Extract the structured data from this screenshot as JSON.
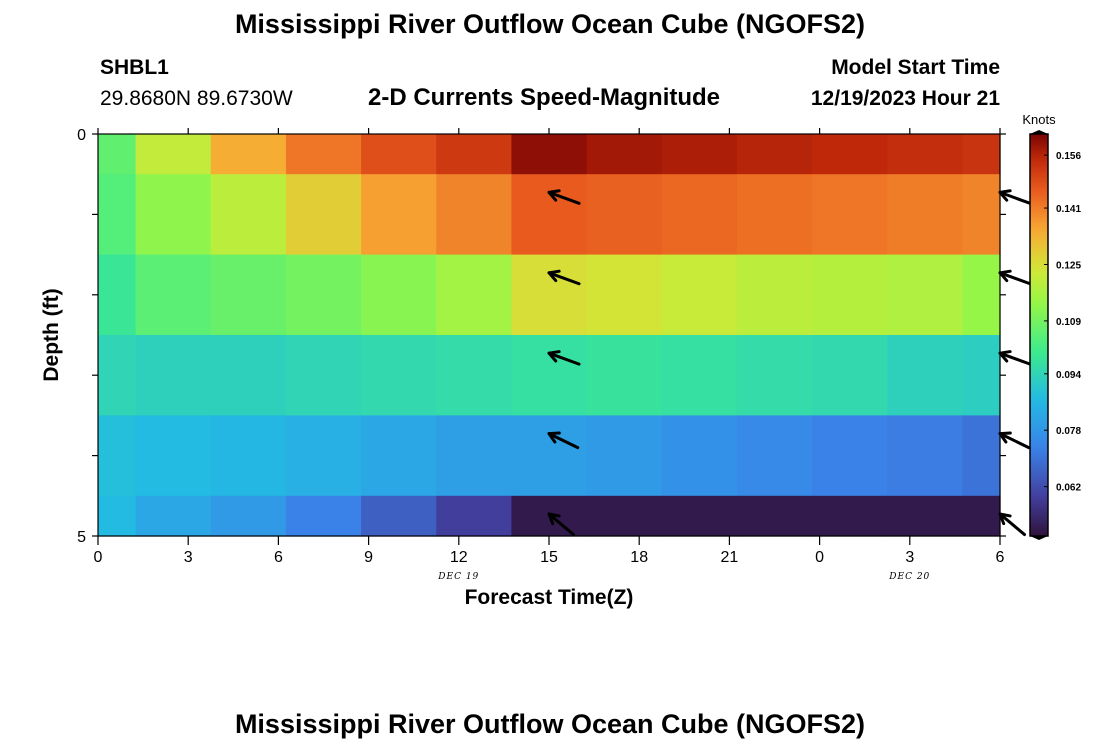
{
  "page": {
    "title": "Mississippi River Outflow Ocean Cube (NGOFS2)",
    "title_repeat": "Mississippi River Outflow Ocean Cube (NGOFS2)",
    "station_id": "SHBL1",
    "station_coords": "29.8680N  89.6730W",
    "subtitle": "2-D Currents Speed-Magnitude",
    "model_start_label": "Model Start Time",
    "model_start_value": "12/19/2023 Hour 21"
  },
  "chart_data": {
    "type": "heatmap",
    "title": "2-D Currents Speed-Magnitude",
    "xlabel": "Forecast Time(Z)",
    "ylabel": "Depth (ft)",
    "x_ticks": [
      "0",
      "3",
      "6",
      "9",
      "12",
      "15",
      "18",
      "21",
      "0",
      "3",
      "6"
    ],
    "x_tick_hours": [
      0,
      3,
      6,
      9,
      12,
      15,
      18,
      21,
      24,
      27,
      30
    ],
    "xlim": [
      0,
      30
    ],
    "date_labels": [
      {
        "text": "DEC 19",
        "hour": 12
      },
      {
        "text": "DEC 20",
        "hour": 27
      }
    ],
    "y_ticks": [
      "0",
      "5"
    ],
    "y_tick_values": [
      0,
      5
    ],
    "ylim": [
      0,
      5
    ],
    "colorbar": {
      "unit": "Knots",
      "tick_labels": [
        "0.156",
        "0.141",
        "0.125",
        "0.109",
        "0.094",
        "0.078",
        "0.062"
      ],
      "tick_values": [
        0.156,
        0.141,
        0.125,
        0.109,
        0.094,
        0.078,
        0.062
      ],
      "range": [
        0.048,
        0.162
      ]
    },
    "column_hours": [
      0,
      2.5,
      5,
      7.5,
      10,
      12.5,
      15,
      17.5,
      20,
      22.5,
      25,
      27.5,
      30
    ],
    "row_depths": [
      0,
      1,
      2,
      3,
      4,
      5
    ],
    "speeds_knots": [
      [
        0.106,
        0.121,
        0.134,
        0.142,
        0.148,
        0.152,
        0.16,
        0.158,
        0.157,
        0.156,
        0.155,
        0.154,
        0.153
      ],
      [
        0.104,
        0.113,
        0.12,
        0.128,
        0.136,
        0.14,
        0.146,
        0.145,
        0.144,
        0.143,
        0.142,
        0.141,
        0.14
      ],
      [
        0.099,
        0.105,
        0.107,
        0.109,
        0.112,
        0.116,
        0.125,
        0.124,
        0.122,
        0.12,
        0.119,
        0.118,
        0.114
      ],
      [
        0.094,
        0.093,
        0.093,
        0.094,
        0.095,
        0.096,
        0.097,
        0.098,
        0.097,
        0.096,
        0.095,
        0.093,
        0.092
      ],
      [
        0.088,
        0.087,
        0.086,
        0.084,
        0.082,
        0.08,
        0.08,
        0.079,
        0.077,
        0.075,
        0.073,
        0.072,
        0.07
      ],
      [
        0.087,
        0.082,
        0.079,
        0.073,
        0.066,
        0.059,
        0.05,
        0.05,
        0.05,
        0.05,
        0.05,
        0.05,
        0.05
      ]
    ],
    "vectors": [
      {
        "hour": 15,
        "depth": 1,
        "direction_deg": 290
      },
      {
        "hour": 15,
        "depth": 2,
        "direction_deg": 290
      },
      {
        "hour": 15,
        "depth": 3,
        "direction_deg": 290
      },
      {
        "hour": 15,
        "depth": 4,
        "direction_deg": 296
      },
      {
        "hour": 15,
        "depth": 5,
        "direction_deg": 310
      },
      {
        "hour": 30,
        "depth": 1,
        "direction_deg": 290
      },
      {
        "hour": 30,
        "depth": 2,
        "direction_deg": 290
      },
      {
        "hour": 30,
        "depth": 3,
        "direction_deg": 290
      },
      {
        "hour": 30,
        "depth": 4,
        "direction_deg": 296
      },
      {
        "hour": 30,
        "depth": 5,
        "direction_deg": 310
      }
    ]
  }
}
